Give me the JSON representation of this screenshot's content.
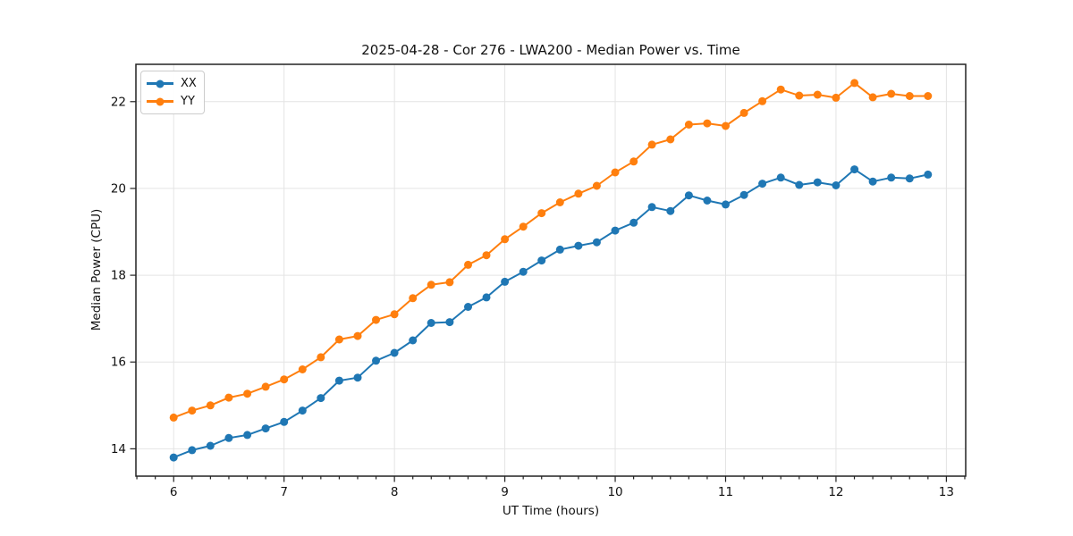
{
  "chart_data": {
    "type": "line",
    "title": "2025-04-28 - Cor 276 - LWA200 - Median Power vs. Time",
    "xlabel": "UT Time (hours)",
    "ylabel": "Median Power (CPU)",
    "xlim": [
      5.658,
      13.175
    ],
    "ylim": [
      13.37,
      22.86
    ],
    "x_ticks": [
      6,
      7,
      8,
      9,
      10,
      11,
      12,
      13
    ],
    "y_ticks": [
      14,
      16,
      18,
      20,
      22
    ],
    "x_minor_tick_step": 0.166667,
    "grid": "major-only",
    "grid_color": "#e4e4e4",
    "background": "#ffffff",
    "legend_position": "upper-left",
    "x": [
      6.0,
      6.167,
      6.333,
      6.5,
      6.667,
      6.833,
      7.0,
      7.167,
      7.333,
      7.5,
      7.667,
      7.833,
      8.0,
      8.167,
      8.333,
      8.5,
      8.667,
      8.833,
      9.0,
      9.167,
      9.333,
      9.5,
      9.667,
      9.833,
      10.0,
      10.167,
      10.333,
      10.5,
      10.667,
      10.833,
      11.0,
      11.167,
      11.333,
      11.5,
      11.667,
      11.833,
      12.0,
      12.167,
      12.333,
      12.5,
      12.667,
      12.833
    ],
    "series": [
      {
        "name": "XX",
        "color": "#1f77b4",
        "values": [
          13.8,
          13.97,
          14.07,
          14.25,
          14.32,
          14.47,
          14.62,
          14.88,
          15.17,
          15.57,
          15.64,
          16.03,
          16.21,
          16.5,
          16.9,
          16.92,
          17.27,
          17.49,
          17.85,
          18.08,
          18.34,
          18.59,
          18.68,
          18.76,
          19.03,
          19.21,
          19.57,
          19.48,
          19.84,
          19.72,
          19.63,
          19.85,
          20.11,
          20.25,
          20.08,
          20.14,
          20.07,
          20.44,
          20.16,
          20.25,
          20.23,
          20.32
        ]
      },
      {
        "name": "YY",
        "color": "#ff7f0e",
        "values": [
          14.72,
          14.88,
          15.0,
          15.18,
          15.27,
          15.43,
          15.6,
          15.83,
          16.11,
          16.52,
          16.6,
          16.97,
          17.1,
          17.47,
          17.78,
          17.84,
          18.24,
          18.46,
          18.83,
          19.12,
          19.43,
          19.68,
          19.88,
          20.06,
          20.37,
          20.62,
          21.01,
          21.13,
          21.47,
          21.5,
          21.44,
          21.74,
          22.01,
          22.28,
          22.14,
          22.16,
          22.09,
          22.43,
          22.1,
          22.18,
          22.13,
          22.13
        ]
      }
    ]
  }
}
